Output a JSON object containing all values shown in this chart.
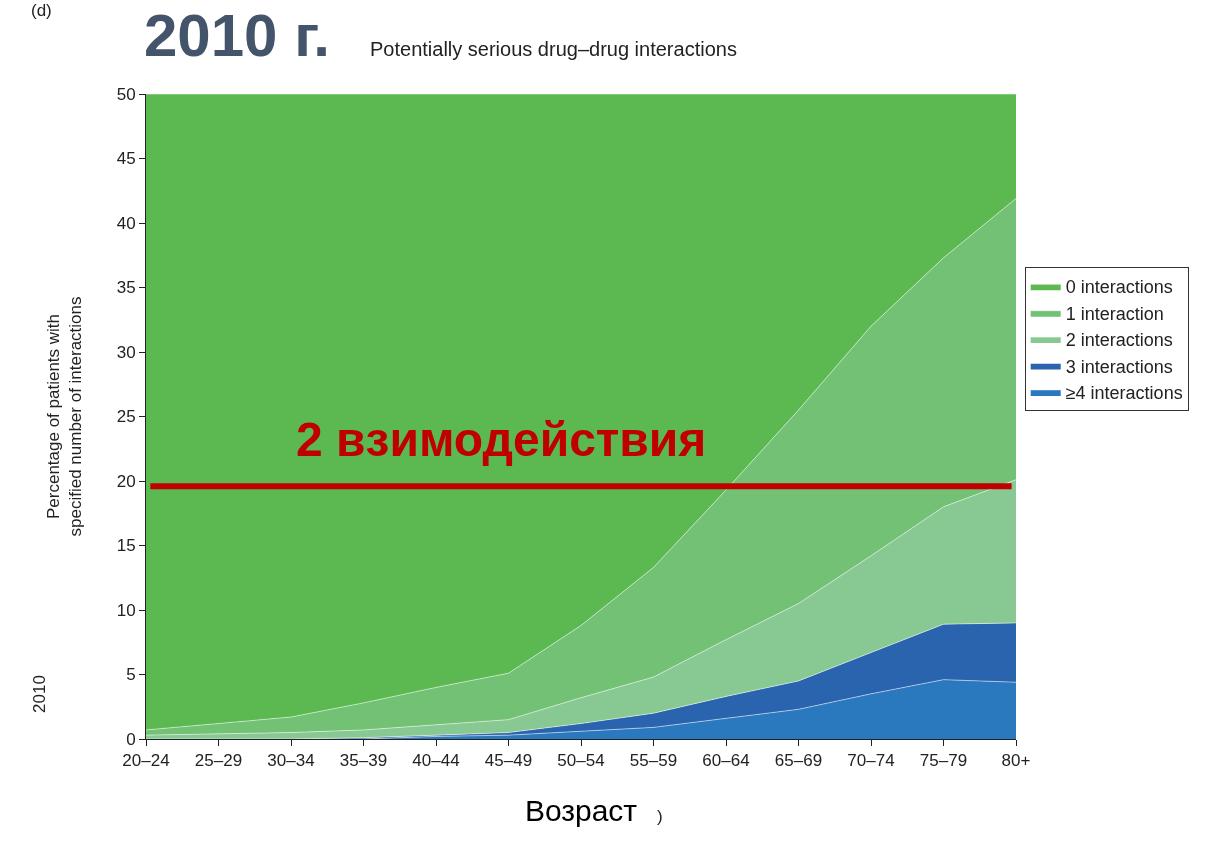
{
  "chart_data": {
    "type": "area",
    "stacked": true,
    "title": "Potentially serious drug–drug interactions",
    "xlabel": "Возраст",
    "ylabel": "Percentage of patients with\nspecified number of interactions",
    "categories": [
      "20–24",
      "25–29",
      "30–34",
      "35–39",
      "40–44",
      "45–49",
      "50–54",
      "55–59",
      "60–64",
      "65–69",
      "70–74",
      "75–79",
      "80+"
    ],
    "series": [
      {
        "name": "≥4 interactions",
        "color": "#2a78be",
        "values": [
          0,
          0,
          0,
          0,
          0.2,
          0.3,
          0.6,
          0.9,
          1.6,
          2.3,
          3.5,
          4.6,
          4.4
        ]
      },
      {
        "name": "3 interactions",
        "color": "#2a64ae",
        "values": [
          0,
          0,
          0,
          0.1,
          0.1,
          0.2,
          0.6,
          1.1,
          1.7,
          2.2,
          3.2,
          4.3,
          4.6
        ]
      },
      {
        "name": "2 interactions",
        "color": "#88c893",
        "values": [
          0.3,
          0.4,
          0.5,
          0.6,
          0.8,
          1.0,
          2.0,
          2.8,
          4.4,
          6.0,
          7.5,
          9.1,
          11.1
        ]
      },
      {
        "name": "1 interaction",
        "color": "#72c174",
        "values": [
          0.4,
          0.8,
          1.2,
          2.1,
          2.9,
          3.6,
          5.6,
          8.5,
          11.6,
          15.0,
          17.8,
          19.3,
          21.8
        ]
      },
      {
        "name": "0 interactions",
        "color": "#5cb951",
        "values": [
          49.3,
          48.8,
          48.3,
          47.2,
          46.0,
          44.9,
          41.2,
          36.7,
          30.7,
          24.5,
          18.0,
          12.7,
          8.1
        ]
      }
    ],
    "ylim": [
      0,
      50
    ],
    "yticks": [
      0,
      5,
      10,
      15,
      20,
      25,
      30,
      35,
      40,
      45,
      50
    ],
    "legend": "right",
    "ref_lines": [
      {
        "axis": "y",
        "value": 19.6,
        "label": "2 взимодействия",
        "color": "#c00000"
      }
    ],
    "annotations": [
      "(d)",
      "2010 г.",
      "2010",
      ")"
    ]
  }
}
